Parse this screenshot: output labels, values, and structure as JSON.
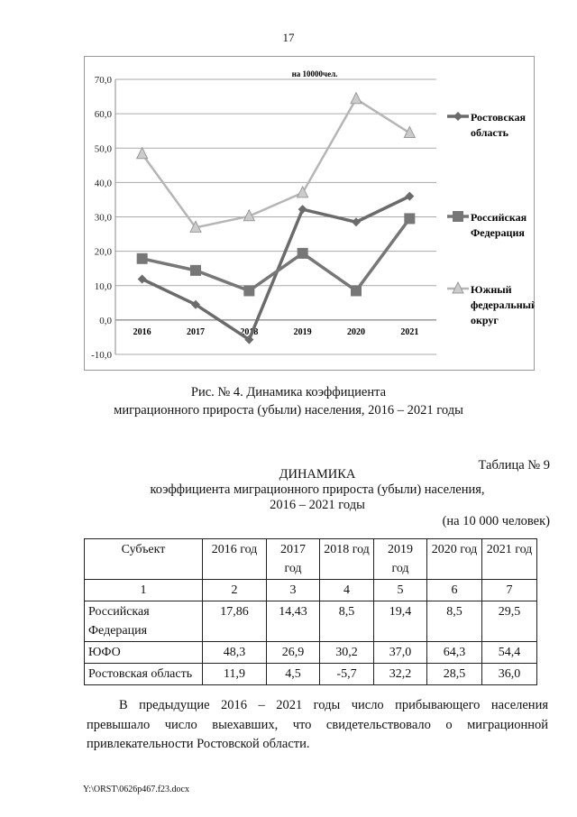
{
  "page_number": "17",
  "chart_data": {
    "type": "line",
    "title": "на 10000чел.",
    "categories": [
      "2016",
      "2017",
      "2018",
      "2019",
      "2020",
      "2021"
    ],
    "ylim": [
      -10,
      70
    ],
    "yticks": [
      "70,0",
      "60,0",
      "50,0",
      "40,0",
      "30,0",
      "20,0",
      "10,0",
      "0,0",
      "-10,0"
    ],
    "ytick_values": [
      70,
      60,
      50,
      40,
      30,
      20,
      10,
      0,
      -10
    ],
    "grid": true,
    "legend_position": "right",
    "series": [
      {
        "name": "Ростовская область",
        "legend_lines": [
          "Ростовская",
          "область"
        ],
        "marker": "diamond",
        "color": "#6b6b6b",
        "values": [
          11.9,
          4.5,
          -5.7,
          32.2,
          28.5,
          36.0
        ]
      },
      {
        "name": "Российская Федерация",
        "legend_lines": [
          "Российская",
          "Федерация"
        ],
        "marker": "square",
        "color": "#777777",
        "values": [
          17.86,
          14.43,
          8.5,
          19.4,
          8.5,
          29.5
        ]
      },
      {
        "name": "Южный федеральный округ",
        "legend_lines": [
          "Южный",
          "федеральный",
          "округ"
        ],
        "marker": "triangle",
        "color": "#b5b5b5",
        "values": [
          48.3,
          26.9,
          30.2,
          37.0,
          64.3,
          54.4
        ]
      }
    ]
  },
  "caption": {
    "line1": "Рис. № 4. Динамика коэффициента",
    "line2": "миграционного прироста (убыли) населения, 2016 – 2021 годы"
  },
  "table_label": "Таблица № 9",
  "table_title": {
    "line1": "ДИНАМИКА",
    "line2": "коэффициента миграционного прироста (убыли) населения,",
    "line3": "2016 – 2021 годы"
  },
  "units": "(на 10 000 человек)",
  "table": {
    "headers": [
      "Субъект",
      "2016 год",
      "2017 год",
      "2018 год",
      "2019 год",
      "2020 год",
      "2021 год"
    ],
    "numbers": [
      "1",
      "2",
      "3",
      "4",
      "5",
      "6",
      "7"
    ],
    "rows": [
      [
        "Российская Федерация",
        "17,86",
        "14,43",
        "8,5",
        "19,4",
        "8,5",
        "29,5"
      ],
      [
        "ЮФО",
        "48,3",
        "26,9",
        "30,2",
        "37,0",
        "64,3",
        "54,4"
      ],
      [
        "Ростовская область",
        "11,9",
        "4,5",
        "-5,7",
        "32,2",
        "28,5",
        "36,0"
      ]
    ]
  },
  "paragraph": "В предыдущие 2016 – 2021 годы число прибывающего населения превышало число выехавших, что свидетельствовало о миграционной привлекательности Ростовской области.",
  "footer": "Y:\\ORST\\0626p467.f23.docx"
}
